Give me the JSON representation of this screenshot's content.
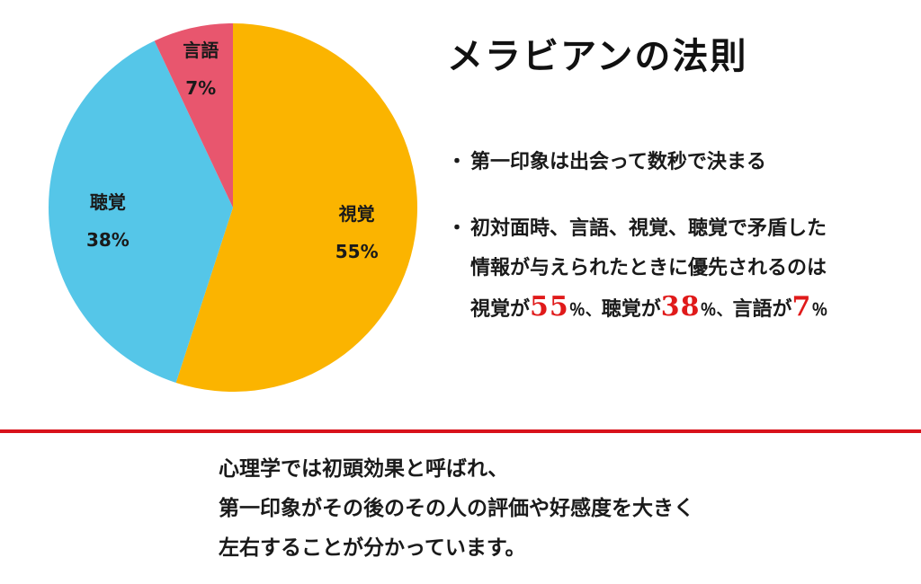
{
  "title": "メラビアンの法則",
  "chart_data": {
    "type": "pie",
    "title": "",
    "slices": [
      {
        "label": "視覚",
        "value": 55,
        "value_label": "55%",
        "color": "#fbb400"
      },
      {
        "label": "聴覚",
        "value": 38,
        "value_label": "38%",
        "color": "#55c6e8"
      },
      {
        "label": "言語",
        "value": 7,
        "value_label": "7%",
        "color": "#e8566e"
      }
    ]
  },
  "bullets": {
    "marker": "・",
    "item1": "第一印象は出会って数秒で決まる",
    "item2_line1": "初対面時、言語、視覚、聴覚で矛盾した",
    "item2_line2": "情報が与えられたときに優先されるのは",
    "item2_line3": {
      "visual_prefix": "視覚が",
      "visual_value": "55",
      "percent_sep1": "％、",
      "auditory_prefix": "聴覚が",
      "auditory_value": "38",
      "percent_sep2": "％、",
      "verbal_prefix": "言語が",
      "verbal_value": "7",
      "percent_end": "％"
    }
  },
  "summary": {
    "line1": "心理学では初頭効果と呼ばれ、",
    "line2": "第一印象がその後のその人の評価や好感度を大きく",
    "line3": "左右することが分かっています。"
  },
  "colors": {
    "divider": "#d8121b",
    "highlight": "#e01a1a"
  }
}
